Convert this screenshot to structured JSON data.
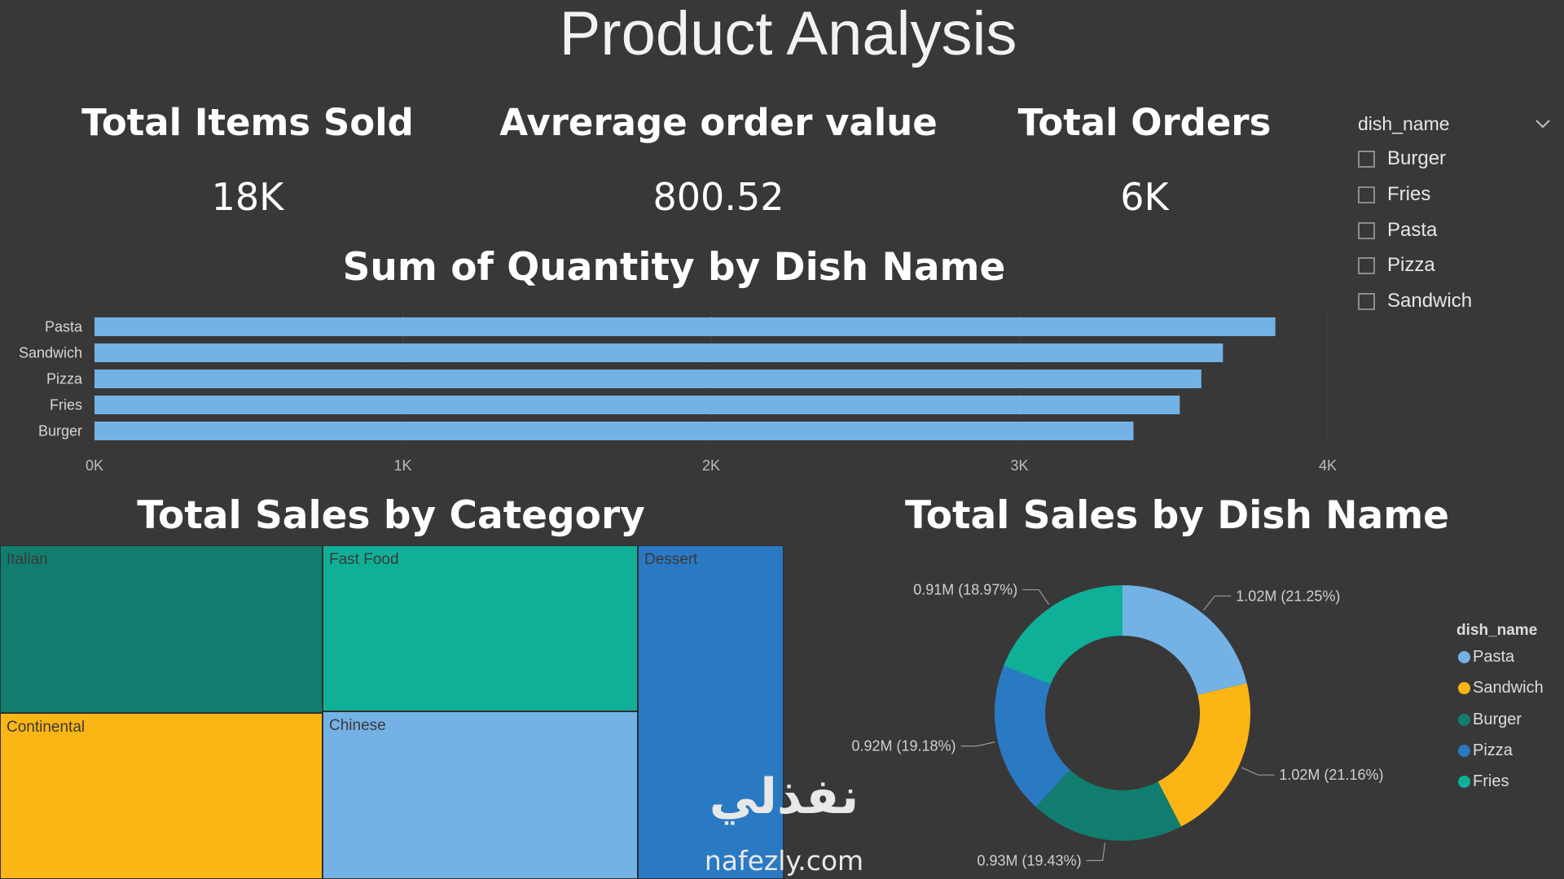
{
  "page": {
    "title": "Product Analysis"
  },
  "kpis": [
    {
      "label": "Total Items Sold",
      "value": "18K"
    },
    {
      "label": "Avrerage order value",
      "value": "800.52"
    },
    {
      "label": "Total Orders",
      "value": "6K"
    }
  ],
  "slicer": {
    "title": "dish_name",
    "items": [
      "Burger",
      "Fries",
      "Pasta",
      "Pizza",
      "Sandwich"
    ]
  },
  "colors": {
    "background": "#383838",
    "light_blue": "#74b2e5",
    "yellow": "#fbb615",
    "dark_teal": "#117d6e",
    "teal": "#10b098",
    "blue": "#2a79c3"
  },
  "watermark": {
    "arabic": "نفذلي",
    "url": "nafezly.com"
  },
  "chart_data": [
    {
      "type": "bar",
      "orientation": "horizontal",
      "title": "Sum of Quantity by Dish Name",
      "categories": [
        "Pasta",
        "Sandwich",
        "Pizza",
        "Fries",
        "Burger"
      ],
      "values": [
        3830,
        3660,
        3590,
        3520,
        3370
      ],
      "xlim": [
        0,
        4000
      ],
      "xticks": [
        "0K",
        "1K",
        "2K",
        "3K",
        "4K"
      ],
      "xlabel": "",
      "ylabel": "",
      "color": "#74b2e5",
      "grid": true
    },
    {
      "type": "treemap",
      "title": "Total Sales by Category",
      "items": [
        {
          "name": "Italian",
          "color": "#117d6e"
        },
        {
          "name": "Continental",
          "color": "#fbb615"
        },
        {
          "name": "Fast Food",
          "color": "#10b098"
        },
        {
          "name": "Chinese",
          "color": "#74b2e5"
        },
        {
          "name": "Dessert",
          "color": "#2a79c3"
        }
      ]
    },
    {
      "type": "pie",
      "variant": "donut",
      "title": "Total Sales by Dish Name",
      "legend_title": "dish_name",
      "legend_position": "right",
      "slices": [
        {
          "name": "Pasta",
          "value": 1.02,
          "percent": 21.25,
          "label": "1.02M (21.25%)",
          "color": "#74b2e5"
        },
        {
          "name": "Sandwich",
          "value": 1.02,
          "percent": 21.16,
          "label": "1.02M (21.16%)",
          "color": "#fbb615"
        },
        {
          "name": "Burger",
          "value": 0.93,
          "percent": 19.43,
          "label": "0.93M (19.43%)",
          "color": "#117d6e"
        },
        {
          "name": "Pizza",
          "value": 0.92,
          "percent": 19.18,
          "label": "0.92M (19.18%)",
          "color": "#2a79c3"
        },
        {
          "name": "Fries",
          "value": 0.91,
          "percent": 18.97,
          "label": "0.91M (18.97%)",
          "color": "#10b098"
        }
      ]
    }
  ]
}
